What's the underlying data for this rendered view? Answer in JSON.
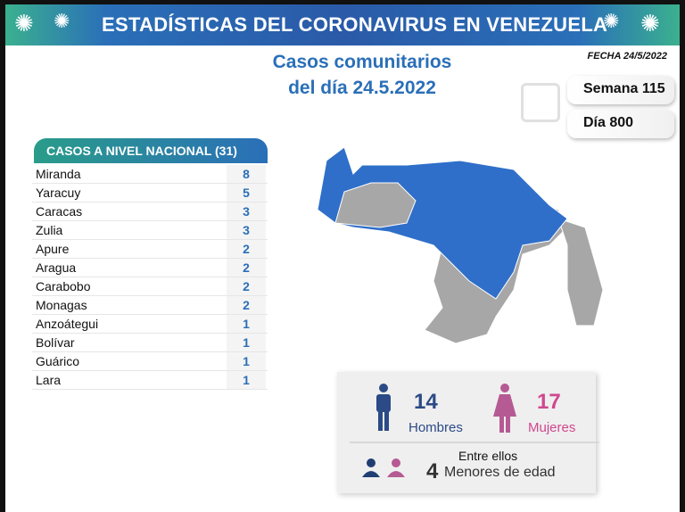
{
  "header": {
    "title": "ESTADÍSTICAS DEL CORONAVIRUS EN VENEZUELA"
  },
  "subtitle": {
    "line1": "Casos comunitarios",
    "line2": "del día 24.5.2022"
  },
  "fecha": "FECHA 24/5/2022",
  "semana": "Semana 115",
  "dia": "Día 800",
  "table": {
    "title": "CASOS A NIVEL NACIONAL  (31)",
    "rows": [
      {
        "name": "Miranda",
        "value": "8"
      },
      {
        "name": "Yaracuy",
        "value": "5"
      },
      {
        "name": "Caracas",
        "value": "3"
      },
      {
        "name": "Zulia",
        "value": "3"
      },
      {
        "name": "Apure",
        "value": "2"
      },
      {
        "name": "Aragua",
        "value": "2"
      },
      {
        "name": "Carabobo",
        "value": "2"
      },
      {
        "name": "Monagas",
        "value": "2"
      },
      {
        "name": "Anzoátegui",
        "value": "1"
      },
      {
        "name": "Bolívar",
        "value": "1"
      },
      {
        "name": "Guárico",
        "value": "1"
      },
      {
        "name": "Lara",
        "value": "1"
      }
    ]
  },
  "stats": {
    "men_count": "14",
    "men_label": "Hombres",
    "women_count": "17",
    "women_label": "Mujeres",
    "minors_intro": "Entre ellos",
    "minors_count": "4",
    "minors_label": "Menores de edad"
  },
  "colors": {
    "blue": "#2a6fb8",
    "men": "#2b4a86",
    "women": "#d0488f",
    "map_gray": "#a7a7a7",
    "map_blue": "#2f6fc9"
  }
}
